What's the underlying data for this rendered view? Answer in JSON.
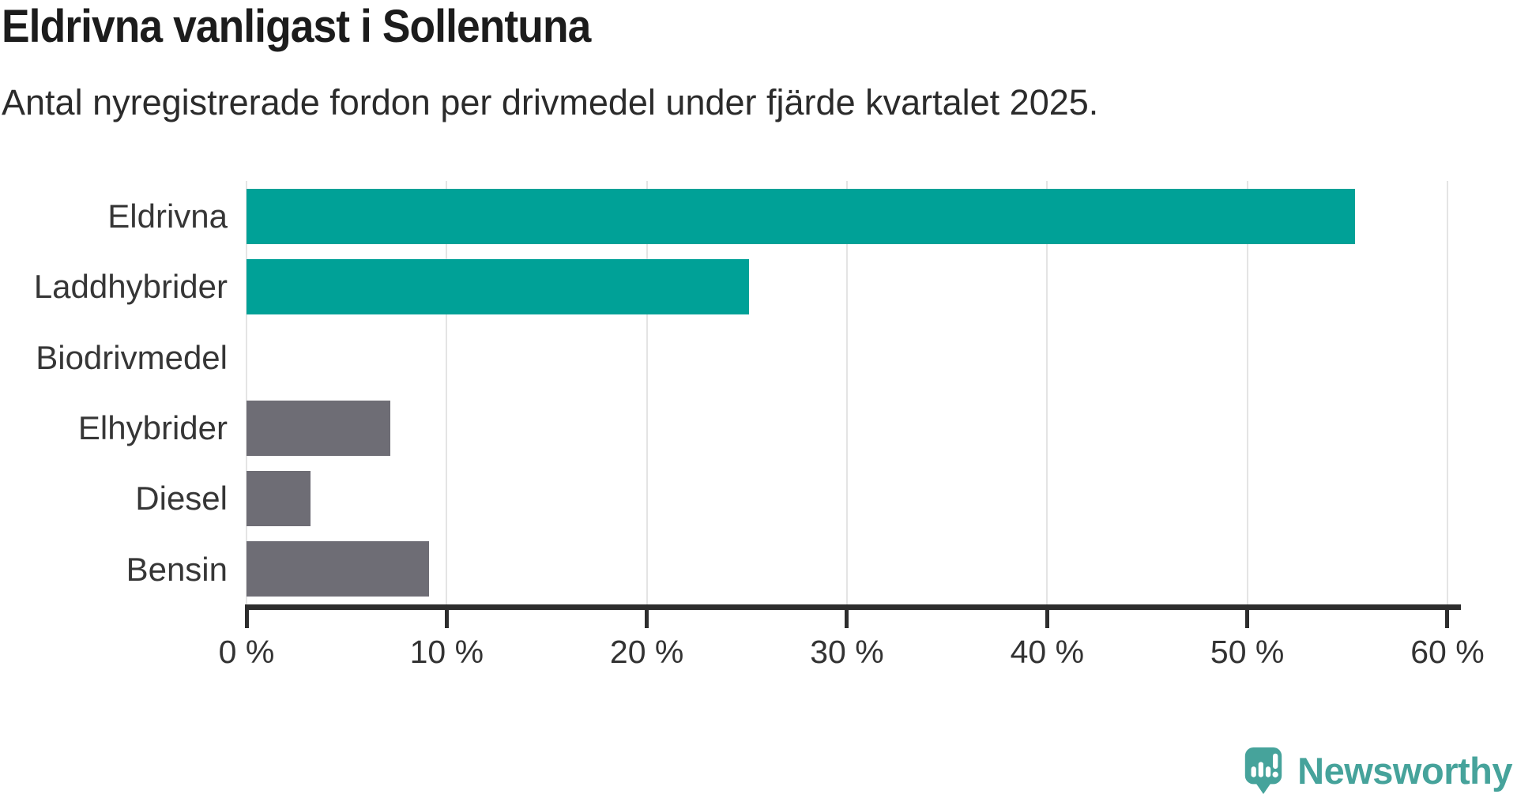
{
  "header": {
    "title": "Eldrivna vanligast i Sollentuna",
    "subtitle": "Antal nyregistrerade fordon per drivmedel under fjärde kvartalet 2025."
  },
  "colors": {
    "teal_bar": "#00a197",
    "gray_bar": "#6e6d75",
    "gridline": "#e4e4e4",
    "axis": "#2d2d2d",
    "title_text": "#1c1c1c",
    "label_text": "#363636",
    "logo": "#46a39b"
  },
  "chart_data": {
    "type": "bar",
    "orientation": "horizontal",
    "title": "Eldrivna vanligast i Sollentuna",
    "subtitle": "Antal nyregistrerade fordon per drivmedel under fjärde kvartalet 2025.",
    "categories": [
      "Eldrivna",
      "Laddhybrider",
      "Biodrivmedel",
      "Elhybrider",
      "Diesel",
      "Bensin"
    ],
    "values": [
      55.4,
      25.1,
      0,
      7.2,
      3.2,
      9.1
    ],
    "bar_colors": [
      "#00a197",
      "#00a197",
      "#00a197",
      "#6e6d75",
      "#6e6d75",
      "#6e6d75"
    ],
    "unit": "%",
    "xlabel": "",
    "ylabel": "",
    "xlim": [
      0,
      60
    ],
    "x_ticks": [
      {
        "value": 0,
        "label": "0 %"
      },
      {
        "value": 10,
        "label": "10 %"
      },
      {
        "value": 20,
        "label": "20 %"
      },
      {
        "value": 30,
        "label": "30 %"
      },
      {
        "value": 40,
        "label": "40 %"
      },
      {
        "value": 50,
        "label": "50 %"
      },
      {
        "value": 60,
        "label": "60 %"
      }
    ],
    "grid": "vertical-light",
    "legend": "none"
  },
  "logo": {
    "text": "Newsworthy",
    "icon": "speech-bubble-bar-chart-exclamation-icon"
  }
}
